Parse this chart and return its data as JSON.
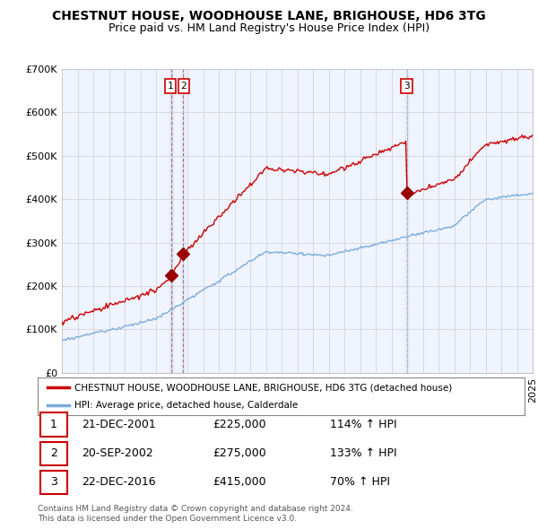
{
  "title": "CHESTNUT HOUSE, WOODHOUSE LANE, BRIGHOUSE, HD6 3TG",
  "subtitle": "Price paid vs. HM Land Registry's House Price Index (HPI)",
  "legend_line1": "CHESTNUT HOUSE, WOODHOUSE LANE, BRIGHOUSE, HD6 3TG (detached house)",
  "legend_line2": "HPI: Average price, detached house, Calderdale",
  "footnote": "Contains HM Land Registry data © Crown copyright and database right 2024.\nThis data is licensed under the Open Government Licence v3.0.",
  "transactions": [
    {
      "num": 1,
      "date": "21-DEC-2001",
      "price": 225000,
      "pct": "114%",
      "direction": "↑"
    },
    {
      "num": 2,
      "date": "20-SEP-2002",
      "price": 275000,
      "pct": "133%",
      "direction": "↑"
    },
    {
      "num": 3,
      "date": "22-DEC-2016",
      "price": 415000,
      "pct": "70%",
      "direction": "↑"
    }
  ],
  "transaction_years": [
    2001.97,
    2002.72,
    2016.98
  ],
  "transaction_prices": [
    225000,
    275000,
    415000
  ],
  "red_line_color": "#cc0000",
  "blue_line_color": "#7aaddc",
  "vline_color": "#cc0000",
  "marker_color": "#990000",
  "shade_color": "#ddeeff",
  "ylim": [
    0,
    700000
  ],
  "yticks": [
    0,
    100000,
    200000,
    300000,
    400000,
    500000,
    600000,
    700000
  ],
  "background_color": "#ffffff",
  "grid_color": "#cccccc",
  "plot_bg_color": "#f0f4ff",
  "title_fontsize": 10,
  "subtitle_fontsize": 9
}
